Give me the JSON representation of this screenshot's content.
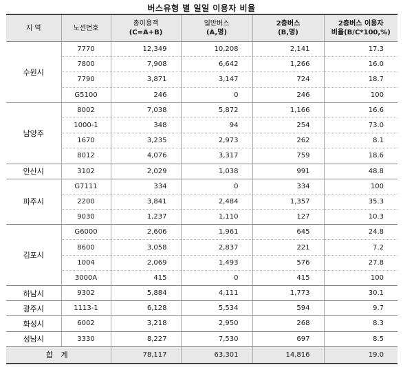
{
  "title": "버스유형 별  일일 이용자 비율",
  "headers": {
    "region": "지 역",
    "route": "노선번호",
    "total_line1": "총이용객",
    "total_line2": "(C=A+B)",
    "general_line1": "일반버스",
    "general_line2": "(A,명)",
    "double_line1": "2층버스",
    "double_line2": "(B,명)",
    "ratio_line1": "2층버스 이용자",
    "ratio_line2": "비율(B/C*100,%)"
  },
  "groups": [
    {
      "region": "수원시",
      "rows": [
        {
          "route": "7770",
          "total": "12,349",
          "general": "10,208",
          "double": "2,141",
          "ratio": "17.3"
        },
        {
          "route": "7800",
          "total": "7,908",
          "general": "6,642",
          "double": "1,266",
          "ratio": "16.0"
        },
        {
          "route": "7790",
          "total": "3,871",
          "general": "3,147",
          "double": "724",
          "ratio": "18.7"
        },
        {
          "route": "G5100",
          "total": "246",
          "general": "0",
          "double": "246",
          "ratio": "100"
        }
      ]
    },
    {
      "region": "남양주",
      "rows": [
        {
          "route": "8002",
          "total": "7,038",
          "general": "5,872",
          "double": "1,166",
          "ratio": "16.6"
        },
        {
          "route": "1000-1",
          "total": "348",
          "general": "94",
          "double": "254",
          "ratio": "73.0"
        },
        {
          "route": "1670",
          "total": "3,235",
          "general": "2,973",
          "double": "262",
          "ratio": "8.1"
        },
        {
          "route": "8012",
          "total": "4,076",
          "general": "3,317",
          "double": "759",
          "ratio": "18.6"
        }
      ]
    },
    {
      "region": "안산시",
      "rows": [
        {
          "route": "3102",
          "total": "2,029",
          "general": "1,038",
          "double": "991",
          "ratio": "48.8"
        }
      ]
    },
    {
      "region": "파주시",
      "rows": [
        {
          "route": "G7111",
          "total": "334",
          "general": "0",
          "double": "334",
          "ratio": "100"
        },
        {
          "route": "2200",
          "total": "3,841",
          "general": "2,484",
          "double": "1,357",
          "ratio": "35.3"
        },
        {
          "route": "9030",
          "total": "1,237",
          "general": "1,110",
          "double": "127",
          "ratio": "10.3"
        }
      ]
    },
    {
      "region": "김포시",
      "rows": [
        {
          "route": "G6000",
          "total": "2,606",
          "general": "1,961",
          "double": "645",
          "ratio": "24.8"
        },
        {
          "route": "8600",
          "total": "3,058",
          "general": "2,837",
          "double": "221",
          "ratio": "7.2"
        },
        {
          "route": "1004",
          "total": "2,069",
          "general": "1,493",
          "double": "576",
          "ratio": "27.8"
        },
        {
          "route": "3000A",
          "total": "415",
          "general": "0",
          "double": "415",
          "ratio": "100"
        }
      ]
    },
    {
      "region": "하남시",
      "rows": [
        {
          "route": "9302",
          "total": "5,884",
          "general": "4,111",
          "double": "1,773",
          "ratio": "30.1"
        }
      ]
    },
    {
      "region": "광주시",
      "rows": [
        {
          "route": "1113-1",
          "total": "6,128",
          "general": "5,534",
          "double": "594",
          "ratio": "9.7"
        }
      ]
    },
    {
      "region": "화성시",
      "rows": [
        {
          "route": "6002",
          "total": "3,218",
          "general": "2,950",
          "double": "268",
          "ratio": "8.3"
        }
      ]
    },
    {
      "region": "성남시",
      "rows": [
        {
          "route": "3330",
          "total": "8,227",
          "general": "7,530",
          "double": "697",
          "ratio": "8.5"
        }
      ]
    }
  ],
  "total_row": {
    "label": "합 계",
    "total": "78,117",
    "general": "63,301",
    "double": "14,816",
    "ratio": "19.0"
  }
}
